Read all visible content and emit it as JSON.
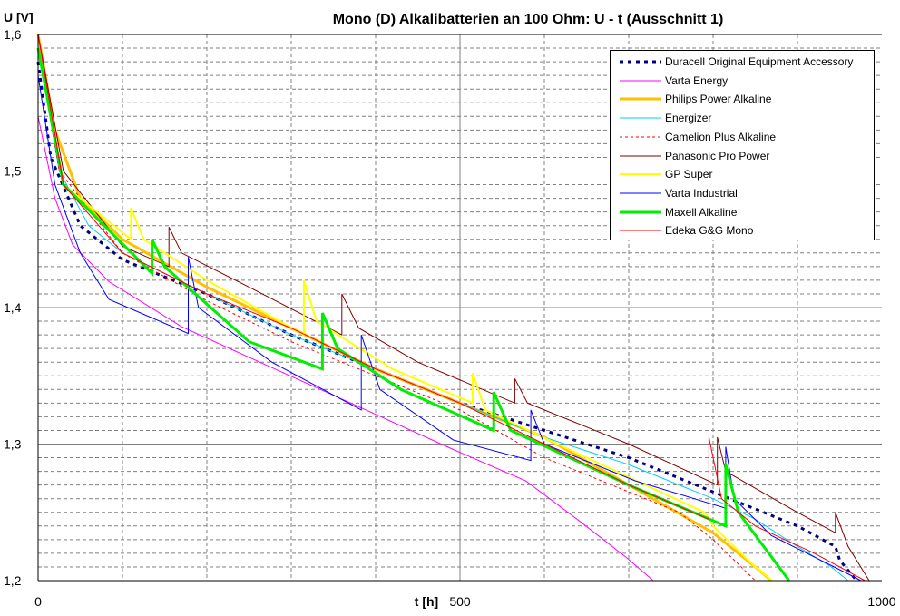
{
  "chart_data": {
    "type": "line",
    "title": "Mono (D) Alkalibatterien an 100 Ohm: U - t (Ausschnitt 1)",
    "xlabel": "t [h]",
    "ylabel": "U [V]",
    "xlim": [
      0,
      1000
    ],
    "ylim": [
      1.2,
      1.6
    ],
    "x_ticks": [
      {
        "v": 0,
        "label": "0"
      },
      {
        "v": 500,
        "label": "500"
      },
      {
        "v": 1000,
        "label": "1000"
      }
    ],
    "y_ticks": [
      {
        "v": 1.2,
        "label": "1,2"
      },
      {
        "v": 1.3,
        "label": "1,3"
      },
      {
        "v": 1.4,
        "label": "1,4"
      },
      {
        "v": 1.5,
        "label": "1,5"
      },
      {
        "v": 1.6,
        "label": "1,6"
      }
    ],
    "grid": true,
    "legend_position": "top-right",
    "series": [
      {
        "name": "Duracell Original Equipment Accessory",
        "color": "#000080",
        "width": 3,
        "dash": "4,5",
        "points": [
          [
            0,
            1.58
          ],
          [
            15,
            1.51
          ],
          [
            50,
            1.46
          ],
          [
            100,
            1.435
          ],
          [
            200,
            1.41
          ],
          [
            300,
            1.38
          ],
          [
            400,
            1.355
          ],
          [
            500,
            1.33
          ],
          [
            600,
            1.31
          ],
          [
            700,
            1.29
          ],
          [
            800,
            1.265
          ],
          [
            900,
            1.24
          ],
          [
            945,
            1.225
          ],
          [
            950,
            1.215
          ],
          [
            970,
            1.2
          ]
        ]
      },
      {
        "name": "Varta Energy",
        "color": "#FF00FF",
        "width": 1,
        "dash": "",
        "points": [
          [
            0,
            1.54
          ],
          [
            20,
            1.48
          ],
          [
            41,
            1.446
          ],
          [
            84,
            1.419
          ],
          [
            170,
            1.386
          ],
          [
            277,
            1.356
          ],
          [
            385,
            1.326
          ],
          [
            492,
            1.296
          ],
          [
            578,
            1.273
          ],
          [
            643,
            1.243
          ],
          [
            697,
            1.217
          ],
          [
            729,
            1.2
          ]
        ]
      },
      {
        "name": "Philips Power Alkaline",
        "color": "#FFC000",
        "width": 3,
        "dash": "",
        "points": [
          [
            0,
            1.6
          ],
          [
            20,
            1.53
          ],
          [
            50,
            1.48
          ],
          [
            100,
            1.45
          ],
          [
            200,
            1.415
          ],
          [
            300,
            1.385
          ],
          [
            400,
            1.355
          ],
          [
            500,
            1.33
          ],
          [
            600,
            1.305
          ],
          [
            700,
            1.27
          ],
          [
            800,
            1.235
          ],
          [
            850,
            1.21
          ],
          [
            869,
            1.2
          ]
        ]
      },
      {
        "name": "Energizer",
        "color": "#00CCFF",
        "width": 1,
        "dash": "",
        "points": [
          [
            0,
            1.59
          ],
          [
            25,
            1.5
          ],
          [
            60,
            1.46
          ],
          [
            100,
            1.44
          ],
          [
            200,
            1.41
          ],
          [
            300,
            1.38
          ],
          [
            400,
            1.355
          ],
          [
            500,
            1.33
          ],
          [
            600,
            1.305
          ],
          [
            700,
            1.285
          ],
          [
            800,
            1.26
          ],
          [
            850,
            1.245
          ],
          [
            900,
            1.225
          ],
          [
            940,
            1.21
          ],
          [
            960,
            1.2
          ]
        ]
      },
      {
        "name": "Camelion Plus Alkaline",
        "color": "#FF0000",
        "width": 1,
        "dash": "3,3",
        "points": [
          [
            0,
            1.59
          ],
          [
            25,
            1.5
          ],
          [
            100,
            1.44
          ],
          [
            200,
            1.405
          ],
          [
            300,
            1.375
          ],
          [
            400,
            1.35
          ],
          [
            500,
            1.325
          ],
          [
            600,
            1.29
          ],
          [
            700,
            1.265
          ],
          [
            760,
            1.25
          ],
          [
            800,
            1.23
          ],
          [
            850,
            1.2
          ]
        ]
      },
      {
        "name": "Panasonic Pro Power",
        "color": "#800000",
        "width": 1,
        "dash": "",
        "points": [
          [
            0,
            1.6
          ],
          [
            30,
            1.5
          ],
          [
            100,
            1.445
          ],
          [
            155,
            1.43
          ],
          [
            155,
            1.459
          ],
          [
            170,
            1.44
          ],
          [
            250,
            1.415
          ],
          [
            360,
            1.38
          ],
          [
            360,
            1.41
          ],
          [
            380,
            1.385
          ],
          [
            450,
            1.36
          ],
          [
            565,
            1.33
          ],
          [
            565,
            1.348
          ],
          [
            580,
            1.33
          ],
          [
            700,
            1.3
          ],
          [
            805,
            1.27
          ],
          [
            805,
            1.305
          ],
          [
            815,
            1.28
          ],
          [
            900,
            1.25
          ],
          [
            945,
            1.235
          ],
          [
            945,
            1.25
          ],
          [
            960,
            1.225
          ],
          [
            985,
            1.2
          ]
        ]
      },
      {
        "name": "GP Super",
        "color": "#FFFF00",
        "width": 2,
        "dash": "",
        "points": [
          [
            0,
            1.59
          ],
          [
            30,
            1.49
          ],
          [
            110,
            1.45
          ],
          [
            110,
            1.473
          ],
          [
            125,
            1.45
          ],
          [
            200,
            1.42
          ],
          [
            315,
            1.38
          ],
          [
            315,
            1.42
          ],
          [
            330,
            1.39
          ],
          [
            420,
            1.355
          ],
          [
            515,
            1.33
          ],
          [
            515,
            1.352
          ],
          [
            530,
            1.325
          ],
          [
            650,
            1.29
          ],
          [
            790,
            1.25
          ],
          [
            800,
            1.24
          ],
          [
            850,
            1.21
          ],
          [
            870,
            1.2
          ]
        ]
      },
      {
        "name": "Varta Industrial",
        "color": "#0000FF",
        "width": 1,
        "dash": "",
        "points": [
          [
            0,
            1.57
          ],
          [
            20,
            1.49
          ],
          [
            50,
            1.44
          ],
          [
            84,
            1.406
          ],
          [
            178,
            1.381
          ],
          [
            178,
            1.437
          ],
          [
            190,
            1.4
          ],
          [
            277,
            1.36
          ],
          [
            383,
            1.325
          ],
          [
            383,
            1.38
          ],
          [
            405,
            1.34
          ],
          [
            492,
            1.303
          ],
          [
            584,
            1.288
          ],
          [
            584,
            1.325
          ],
          [
            600,
            1.3
          ],
          [
            708,
            1.273
          ],
          [
            815,
            1.253
          ],
          [
            815,
            1.298
          ],
          [
            825,
            1.26
          ],
          [
            869,
            1.233
          ],
          [
            966,
            1.203
          ],
          [
            975,
            1.2
          ]
        ]
      },
      {
        "name": "Maxell Alkaline",
        "color": "#00EE00",
        "width": 3,
        "dash": "",
        "points": [
          [
            0,
            1.59
          ],
          [
            30,
            1.49
          ],
          [
            135,
            1.425
          ],
          [
            135,
            1.45
          ],
          [
            150,
            1.43
          ],
          [
            250,
            1.375
          ],
          [
            337,
            1.355
          ],
          [
            337,
            1.396
          ],
          [
            355,
            1.37
          ],
          [
            430,
            1.34
          ],
          [
            540,
            1.31
          ],
          [
            540,
            1.338
          ],
          [
            560,
            1.31
          ],
          [
            700,
            1.27
          ],
          [
            815,
            1.24
          ],
          [
            815,
            1.285
          ],
          [
            830,
            1.25
          ],
          [
            890,
            1.2
          ]
        ]
      },
      {
        "name": "Edeka G&G Mono",
        "color": "#FF0000",
        "width": 1,
        "dash": "",
        "points": [
          [
            0,
            1.6
          ],
          [
            30,
            1.49
          ],
          [
            100,
            1.44
          ],
          [
            200,
            1.41
          ],
          [
            300,
            1.385
          ],
          [
            400,
            1.355
          ],
          [
            500,
            1.33
          ],
          [
            600,
            1.3
          ],
          [
            700,
            1.27
          ],
          [
            795,
            1.245
          ],
          [
            795,
            1.305
          ],
          [
            810,
            1.26
          ],
          [
            850,
            1.24
          ],
          [
            920,
            1.22
          ],
          [
            980,
            1.2
          ]
        ]
      }
    ]
  }
}
